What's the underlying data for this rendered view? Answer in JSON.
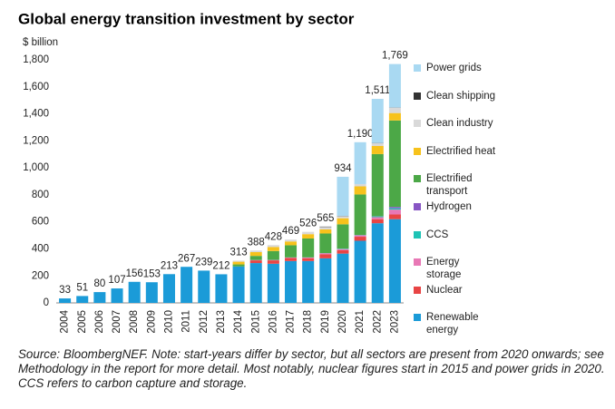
{
  "chart_data": {
    "type": "stacked-bar",
    "title": "Global energy transition investment by sector",
    "y_label": "$ billion",
    "categories": [
      "2004",
      "2005",
      "2006",
      "2007",
      "2008",
      "2009",
      "2010",
      "2011",
      "2012",
      "2013",
      "2014",
      "2015",
      "2016",
      "2017",
      "2018",
      "2019",
      "2020",
      "2021",
      "2022",
      "2023"
    ],
    "series": [
      {
        "name": "Renewable energy",
        "color": "#1b9bd8",
        "values": [
          33,
          51,
          80,
          107,
          156,
          153,
          213,
          267,
          239,
          212,
          270,
          295,
          290,
          310,
          310,
          330,
          365,
          460,
          590,
          620
        ]
      },
      {
        "name": "Nuclear",
        "color": "#e84545",
        "values": [
          0,
          0,
          0,
          0,
          0,
          0,
          0,
          0,
          0,
          0,
          0,
          20,
          25,
          22,
          20,
          30,
          25,
          30,
          30,
          35
        ]
      },
      {
        "name": "Energy storage",
        "color": "#e878b5",
        "values": [
          0,
          0,
          0,
          0,
          0,
          0,
          0,
          0,
          0,
          0,
          0,
          2,
          3,
          4,
          6,
          7,
          8,
          10,
          15,
          36
        ]
      },
      {
        "name": "CCS",
        "color": "#1fc3b5",
        "values": [
          0,
          0,
          0,
          0,
          0,
          0,
          0,
          0,
          0,
          0,
          0,
          1,
          1,
          1,
          1,
          1,
          3,
          2,
          6,
          10
        ]
      },
      {
        "name": "Hydrogen",
        "color": "#8856c4",
        "values": [
          0,
          0,
          0,
          0,
          0,
          0,
          0,
          0,
          0,
          0,
          0,
          0,
          0,
          0,
          0,
          1,
          1,
          1,
          1,
          10
        ]
      },
      {
        "name": "Electrified transport",
        "color": "#4ca847",
        "values": [
          0,
          0,
          0,
          0,
          0,
          0,
          0,
          0,
          0,
          0,
          15,
          30,
          65,
          90,
          140,
          145,
          180,
          300,
          460,
          640
        ]
      },
      {
        "name": "Electrified heat",
        "color": "#f7c21c",
        "values": [
          0,
          0,
          0,
          0,
          0,
          0,
          0,
          0,
          0,
          0,
          20,
          28,
          30,
          28,
          32,
          30,
          45,
          60,
          60,
          55
        ]
      },
      {
        "name": "Clean industry",
        "color": "#d9d9d9",
        "values": [
          0,
          0,
          0,
          0,
          0,
          0,
          0,
          0,
          0,
          0,
          8,
          12,
          14,
          14,
          17,
          18,
          15,
          17,
          20,
          40
        ]
      },
      {
        "name": "Clean shipping",
        "color": "#333333",
        "values": [
          0,
          0,
          0,
          0,
          0,
          0,
          0,
          0,
          0,
          0,
          0,
          0,
          0,
          0,
          0,
          3,
          2,
          0,
          2,
          1
        ]
      },
      {
        "name": "Power grids",
        "color": "#a9d9f2",
        "values": [
          0,
          0,
          0,
          0,
          0,
          0,
          0,
          0,
          0,
          0,
          0,
          0,
          0,
          0,
          0,
          0,
          290,
          310,
          327,
          322
        ]
      }
    ],
    "totals": {
      "values": [
        33,
        51,
        80,
        107,
        156,
        153,
        213,
        267,
        239,
        212,
        313,
        388,
        428,
        469,
        526,
        565,
        934,
        1190,
        1511,
        1769
      ],
      "value_labels": [
        "33",
        "51",
        "80",
        "107",
        "156",
        "153",
        "213",
        "267",
        "239",
        "212",
        "313",
        "388",
        "428",
        "469",
        "526",
        "565",
        "934",
        "1,190",
        "1,511",
        "1,769"
      ]
    },
    "ylim": [
      0,
      1800
    ],
    "yticks": [
      0,
      200,
      400,
      600,
      800,
      {
        "value": 1000,
        "label": "1,000"
      },
      {
        "value": 1200,
        "label": "1,200"
      },
      {
        "value": 1400,
        "label": "1,400"
      },
      {
        "value": 1600,
        "label": "1,600"
      },
      {
        "value": 1800,
        "label": "1,800"
      }
    ],
    "grid": false,
    "legend": "right",
    "note": "Source: BloombergNEF. Note: start-years differ by sector, but all sectors are present from 2020 onwards; see Methodology in the report for more detail. Most notably, nuclear figures start in 2015 and power grids in 2020. CCS refers to carbon capture and storage."
  }
}
